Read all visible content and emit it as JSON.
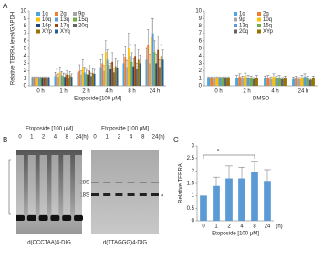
{
  "panel_labels": [
    "A",
    "B",
    "C"
  ],
  "chart_data": [
    {
      "type": "bar",
      "y_label": "Relative TERRA level/GAPDH",
      "x_label": "Etoposide [100 μM]",
      "categories": [
        "0 h",
        "1 h",
        "2 h",
        "4 h",
        "8 h",
        "24 h"
      ],
      "ylim": [
        0,
        10
      ],
      "yticks": [
        0,
        1,
        2,
        3,
        4,
        5,
        6,
        7,
        8,
        9,
        10
      ],
      "legend": "upper left",
      "series": [
        {
          "name": "1q",
          "color": "#4ea6dc",
          "values": [
            1.0,
            1.3,
            1.8,
            2.5,
            3.0,
            3.5
          ],
          "errors": [
            0.2,
            0.5,
            0.6,
            1.0,
            1.2,
            1.5
          ]
        },
        {
          "name": "2q",
          "color": "#ed7d31",
          "values": [
            1.0,
            1.6,
            2.0,
            3.0,
            3.8,
            5.5
          ],
          "errors": [
            0.2,
            0.6,
            0.8,
            1.2,
            1.5,
            2.0
          ]
        },
        {
          "name": "9p",
          "color": "#a5a5a5",
          "values": [
            1.0,
            1.2,
            1.5,
            2.0,
            2.5,
            3.0
          ],
          "errors": [
            0.2,
            0.4,
            0.5,
            0.7,
            0.9,
            1.2
          ]
        },
        {
          "name": "10q",
          "color": "#ffc000",
          "values": [
            1.0,
            1.8,
            2.5,
            4.5,
            5.0,
            6.5
          ],
          "errors": [
            0.2,
            0.7,
            1.0,
            1.5,
            2.0,
            2.5
          ]
        },
        {
          "name": "13q",
          "color": "#5b9bd5",
          "values": [
            1.0,
            1.4,
            1.8,
            3.5,
            4.0,
            7.0
          ],
          "errors": [
            0.2,
            0.5,
            0.7,
            1.3,
            1.5,
            2.0
          ]
        },
        {
          "name": "15q",
          "color": "#70ad47",
          "values": [
            1.0,
            1.3,
            1.6,
            2.8,
            3.2,
            4.5
          ],
          "errors": [
            0.2,
            0.4,
            0.6,
            1.0,
            1.2,
            1.5
          ]
        },
        {
          "name": "16p",
          "color": "#264478",
          "values": [
            1.0,
            1.2,
            1.5,
            2.2,
            2.6,
            3.0
          ],
          "errors": [
            0.2,
            0.4,
            0.5,
            0.8,
            1.0,
            1.2
          ]
        },
        {
          "name": "17q",
          "color": "#9e480e",
          "values": [
            1.0,
            1.5,
            2.0,
            3.2,
            4.0,
            4.8
          ],
          "errors": [
            0.2,
            0.5,
            0.7,
            1.2,
            1.5,
            1.8
          ]
        },
        {
          "name": "20q",
          "color": "#636363",
          "values": [
            1.0,
            1.1,
            1.3,
            1.8,
            2.2,
            2.5
          ],
          "errors": [
            0.2,
            0.3,
            0.4,
            0.6,
            0.8,
            1.0
          ]
        },
        {
          "name": "XYp",
          "color": "#997300",
          "values": [
            1.0,
            1.4,
            1.7,
            2.6,
            3.5,
            4.0
          ],
          "errors": [
            0.2,
            0.5,
            0.6,
            1.0,
            1.3,
            1.5
          ]
        },
        {
          "name": "XYq",
          "color": "#255e91",
          "values": [
            1.0,
            1.2,
            1.6,
            2.4,
            3.0,
            3.5
          ],
          "errors": [
            0.2,
            0.4,
            0.6,
            0.9,
            1.1,
            1.3
          ]
        }
      ]
    },
    {
      "type": "bar",
      "x_label": "DMSO",
      "categories": [
        "0 h",
        "2 h",
        "4 h",
        "24 h"
      ],
      "ylim": [
        0,
        10
      ],
      "yticks": [
        0,
        1,
        2,
        3,
        4,
        5,
        6,
        7,
        8,
        9,
        10
      ],
      "legend": "upper right",
      "series": [
        {
          "name": "1q",
          "color": "#4ea6dc",
          "values": [
            1.0,
            1.1,
            1.0,
            0.9
          ],
          "errors": [
            0.2,
            0.3,
            0.3,
            0.3
          ]
        },
        {
          "name": "2q",
          "color": "#ed7d31",
          "values": [
            1.0,
            1.2,
            1.1,
            1.0
          ],
          "errors": [
            0.2,
            0.4,
            0.3,
            0.3
          ]
        },
        {
          "name": "9p",
          "color": "#a5a5a5",
          "values": [
            1.0,
            1.0,
            0.9,
            0.9
          ],
          "errors": [
            0.2,
            0.3,
            0.3,
            0.2
          ]
        },
        {
          "name": "10q",
          "color": "#ffc000",
          "values": [
            1.0,
            1.3,
            1.2,
            1.1
          ],
          "errors": [
            0.2,
            0.4,
            0.4,
            0.3
          ]
        },
        {
          "name": "13q",
          "color": "#5b9bd5",
          "values": [
            1.0,
            1.1,
            1.0,
            1.2
          ],
          "errors": [
            0.2,
            0.3,
            0.3,
            0.4
          ]
        },
        {
          "name": "15q",
          "color": "#70ad47",
          "values": [
            1.0,
            1.0,
            1.1,
            1.0
          ],
          "errors": [
            0.2,
            0.3,
            0.3,
            0.3
          ]
        },
        {
          "name": "20q",
          "color": "#636363",
          "values": [
            1.0,
            0.9,
            0.9,
            0.8
          ],
          "errors": [
            0.2,
            0.2,
            0.2,
            0.2
          ]
        },
        {
          "name": "XYp",
          "color": "#997300",
          "values": [
            1.0,
            1.1,
            1.0,
            1.0
          ],
          "errors": [
            0.2,
            0.3,
            0.3,
            0.3
          ]
        }
      ]
    },
    {
      "type": "bar",
      "y_label": "Relative TERRA",
      "x_label": "Etoposide [100 μM]",
      "x_unit": "(h)",
      "categories": [
        "0",
        "1",
        "2",
        "4",
        "8",
        "24"
      ],
      "ylim": [
        0,
        3
      ],
      "yticks": [
        0,
        0.5,
        1,
        1.5,
        2,
        2.5,
        3
      ],
      "series": [
        {
          "color": "#5b9bd5",
          "values": [
            1.0,
            1.4,
            1.7,
            1.7,
            1.95,
            1.6
          ],
          "errors": [
            0.0,
            0.35,
            0.5,
            0.45,
            0.4,
            0.45
          ]
        }
      ],
      "significance": "*"
    }
  ],
  "gel": {
    "treatment": "Etoposide [100 μM]",
    "lanes": [
      "0",
      "1",
      "2",
      "4",
      "8",
      "24"
    ],
    "unit": "(h)",
    "marker_28s": "28S",
    "marker_18s": "18S",
    "asterisk": "*",
    "probes": [
      "d(CCCTAA)4-DIG",
      "d(TTAGGG)4-DIG"
    ]
  }
}
